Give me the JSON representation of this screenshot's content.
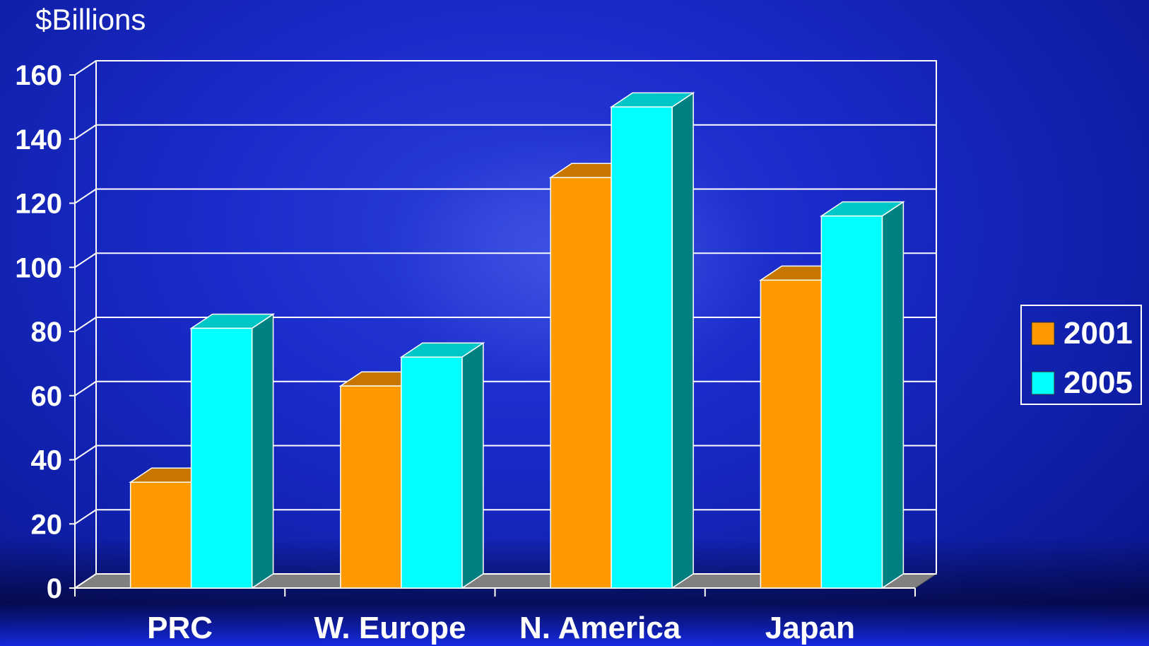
{
  "chart_data": {
    "type": "bar",
    "ylabel": "$Billions",
    "categories": [
      "PRC",
      "W. Europe",
      "N. America",
      "Japan"
    ],
    "series": [
      {
        "name": "2001",
        "values": [
          33,
          63,
          128,
          96
        ],
        "color": "#ff9900"
      },
      {
        "name": "2005",
        "values": [
          81,
          72,
          150,
          116
        ],
        "color": "#00ffff"
      }
    ],
    "ylim": [
      0,
      160
    ],
    "yticks": [
      "0",
      "20",
      "40",
      "60",
      "80",
      "100",
      "120",
      "140",
      "160"
    ],
    "grid": true,
    "legend_position": "right"
  }
}
